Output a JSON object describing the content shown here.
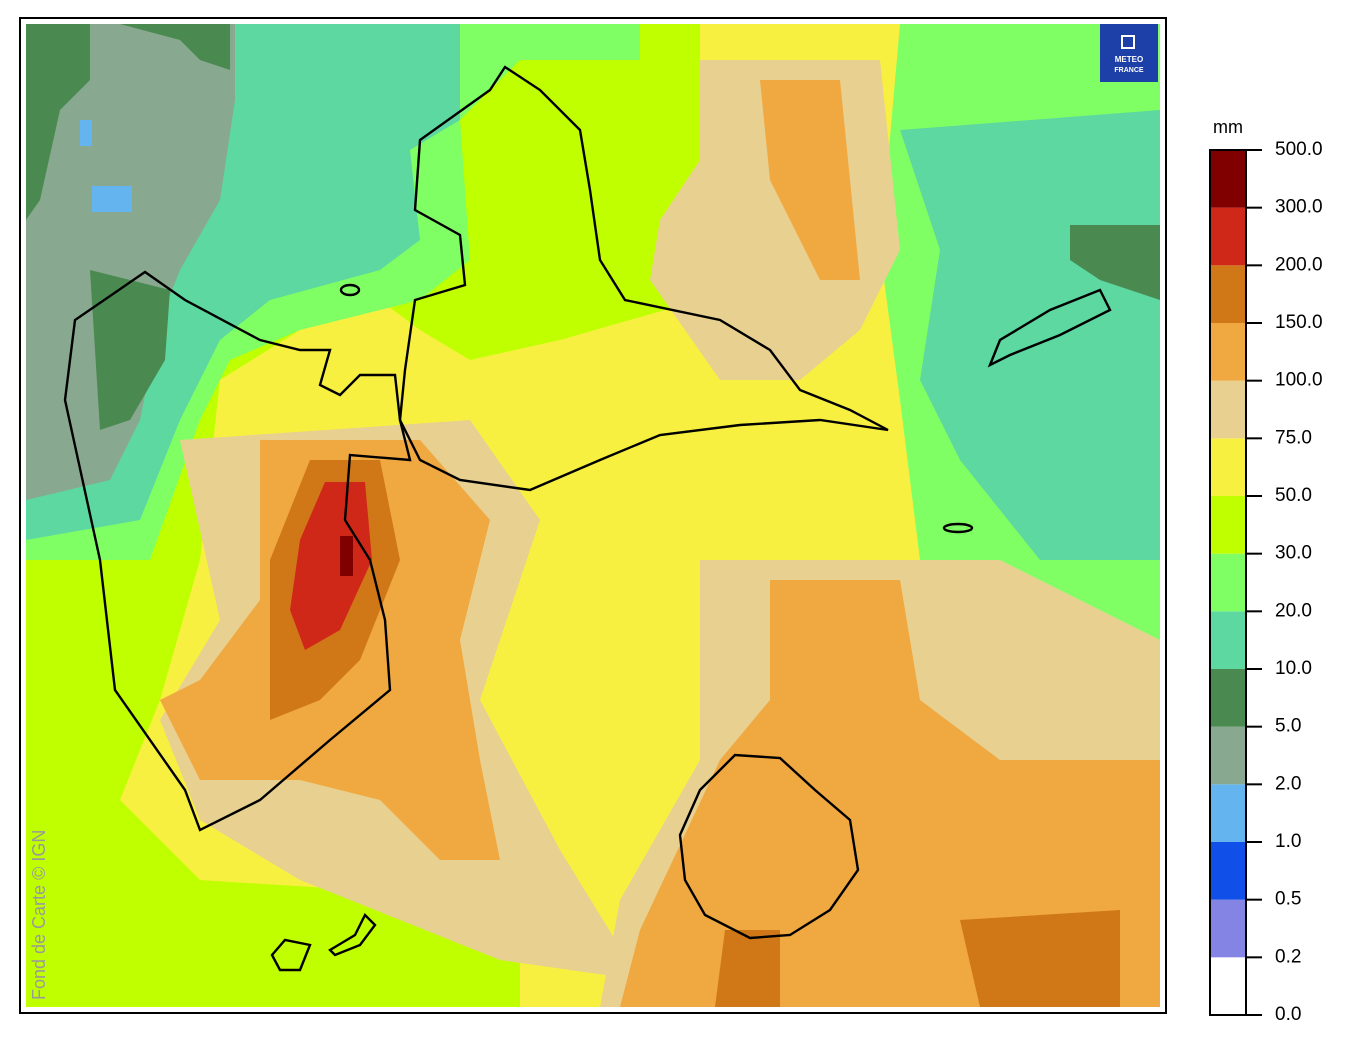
{
  "logo": {
    "line1": "METEO",
    "line2": "FRANCE"
  },
  "credit": "Fond de Carte © IGN",
  "legend": {
    "unit": "mm",
    "labels": [
      "0.0",
      "0.2",
      "0.5",
      "1.0",
      "2.0",
      "5.0",
      "10.0",
      "20.0",
      "30.0",
      "50.0",
      "75.0",
      "100.0",
      "150.0",
      "200.0",
      "300.0",
      "500.0"
    ],
    "colors": [
      "#ffffff",
      "#8484e4",
      "#1050e8",
      "#64b4f0",
      "#88a890",
      "#4a8a50",
      "#5cd8a0",
      "#80ff64",
      "#c0ff00",
      "#f8f040",
      "#e8d090",
      "#f0a840",
      "#d07818",
      "#d02818",
      "#800000"
    ]
  }
}
